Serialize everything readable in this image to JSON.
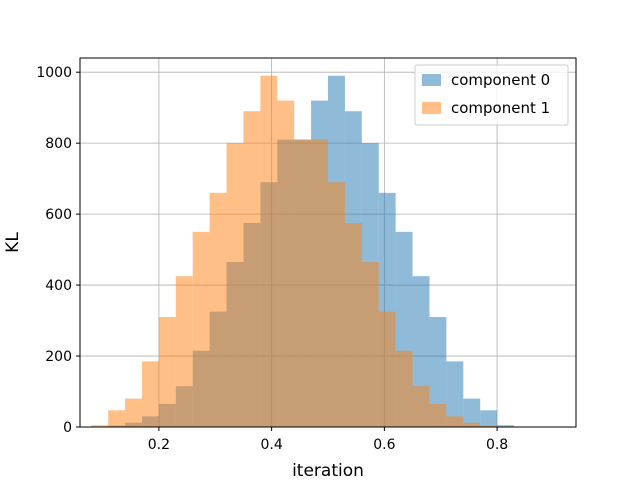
{
  "chart_data": {
    "type": "bar",
    "title": "",
    "xlabel": "iteration",
    "ylabel": "KL",
    "xlim": [
      0.06,
      0.94
    ],
    "ylim": [
      0,
      1040
    ],
    "xticks": [
      "0.2",
      "0.4",
      "0.6",
      "0.8"
    ],
    "yticks": [
      "0",
      "200",
      "400",
      "600",
      "800",
      "1000"
    ],
    "grid": true,
    "legend_position": "top-right",
    "bin_edges": [
      0.08,
      0.11,
      0.14,
      0.17,
      0.2,
      0.23,
      0.26,
      0.29,
      0.32,
      0.35,
      0.38,
      0.41,
      0.44,
      0.47,
      0.5,
      0.53,
      0.56,
      0.59,
      0.62,
      0.65,
      0.68,
      0.71,
      0.74,
      0.77,
      0.8,
      0.83,
      0.86,
      0.89,
      0.92
    ],
    "series": [
      {
        "name": "component 0",
        "color": "#1f77b4",
        "opacity": 0.5,
        "values": [
          1,
          4,
          12,
          30,
          65,
          115,
          215,
          325,
          465,
          575,
          690,
          810,
          810,
          920,
          990,
          890,
          800,
          660,
          550,
          425,
          310,
          185,
          80,
          47,
          5,
          1,
          0,
          0
        ]
      },
      {
        "name": "component 1",
        "color": "#ff7f0e",
        "opacity": 0.5,
        "values": [
          5,
          47,
          80,
          185,
          310,
          425,
          550,
          660,
          800,
          890,
          990,
          920,
          810,
          810,
          690,
          575,
          465,
          325,
          215,
          115,
          65,
          30,
          12,
          4,
          1,
          0,
          0,
          0
        ]
      }
    ]
  }
}
